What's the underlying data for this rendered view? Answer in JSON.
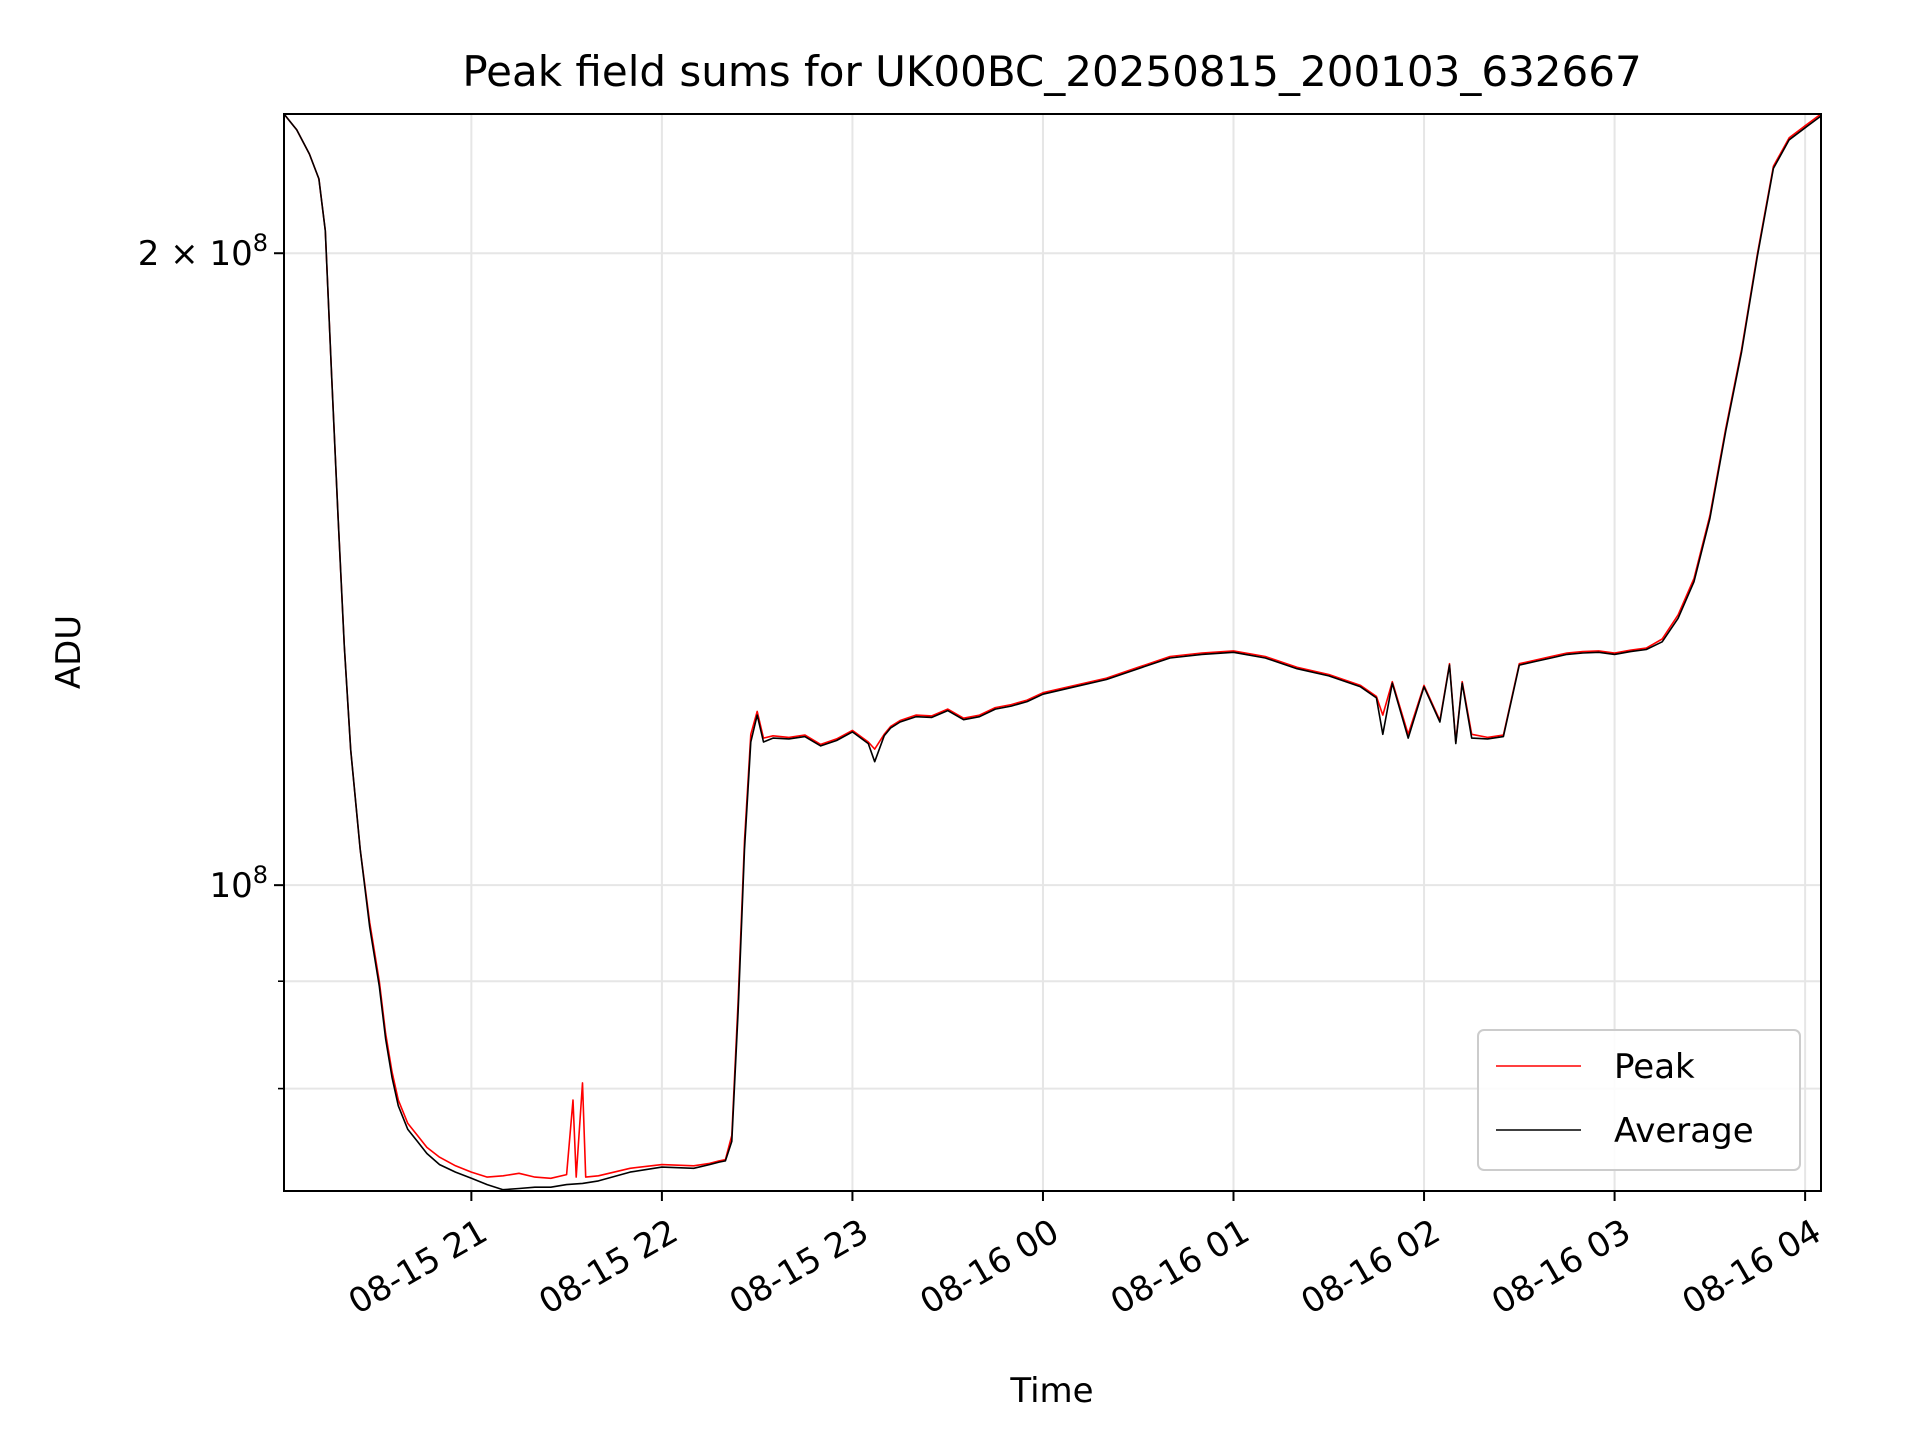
{
  "chart_data": {
    "type": "line",
    "title": "Peak field sums for UK00BC_20250815_200103_632667",
    "xlabel": "Time",
    "ylabel": "ADU",
    "x_axis_type": "time",
    "xlim": [
      "2025-08-15 20:01",
      "2025-08-16 04:05"
    ],
    "x_ticks": [
      "2025-08-15 21:00",
      "2025-08-15 22:00",
      "2025-08-15 23:00",
      "2025-08-16 00:00",
      "2025-08-16 01:00",
      "2025-08-16 02:00",
      "2025-08-16 03:00",
      "2025-08-16 04:00"
    ],
    "x_tick_labels": [
      "08-15 21",
      "08-15 22",
      "08-15 23",
      "08-16 00",
      "08-16 01",
      "08-16 02",
      "08-16 03",
      "08-16 04"
    ],
    "y_scale": "log",
    "ylim": [
      71500000,
      233000000
    ],
    "y_ticks": [
      {
        "value": 200000000,
        "base": "2 × 10",
        "exp": "8"
      },
      {
        "value": 100000000,
        "base": "10",
        "exp": "8"
      }
    ],
    "y_minor_ticks": [
      90000000,
      80000000
    ],
    "grid": true,
    "legend_position": "lower right",
    "series": [
      {
        "name": "Peak",
        "color": "#ff0000",
        "x": [
          "2025-08-15 20:01",
          "2025-08-15 20:05",
          "2025-08-15 20:09",
          "2025-08-15 20:12",
          "2025-08-15 20:14",
          "2025-08-15 20:16",
          "2025-08-15 20:18",
          "2025-08-15 20:20",
          "2025-08-15 20:22",
          "2025-08-15 20:25",
          "2025-08-15 20:28",
          "2025-08-15 20:31",
          "2025-08-15 20:33",
          "2025-08-15 20:35",
          "2025-08-15 20:37",
          "2025-08-15 20:40",
          "2025-08-15 20:43",
          "2025-08-15 20:46",
          "2025-08-15 20:50",
          "2025-08-15 20:55",
          "2025-08-15 21:00",
          "2025-08-15 21:05",
          "2025-08-15 21:10",
          "2025-08-15 21:15",
          "2025-08-15 21:20",
          "2025-08-15 21:25",
          "2025-08-15 21:30",
          "2025-08-15 21:32",
          "2025-08-15 21:33",
          "2025-08-15 21:35",
          "2025-08-15 21:36",
          "2025-08-15 21:40",
          "2025-08-15 21:50",
          "2025-08-15 22:00",
          "2025-08-15 22:10",
          "2025-08-15 22:15",
          "2025-08-15 22:18",
          "2025-08-15 22:20",
          "2025-08-15 22:22",
          "2025-08-15 22:24",
          "2025-08-15 22:26",
          "2025-08-15 22:28",
          "2025-08-15 22:30",
          "2025-08-15 22:32",
          "2025-08-15 22:35",
          "2025-08-15 22:40",
          "2025-08-15 22:45",
          "2025-08-15 22:50",
          "2025-08-15 22:55",
          "2025-08-15 23:00",
          "2025-08-15 23:05",
          "2025-08-15 23:07",
          "2025-08-15 23:10",
          "2025-08-15 23:12",
          "2025-08-15 23:15",
          "2025-08-15 23:20",
          "2025-08-15 23:25",
          "2025-08-15 23:30",
          "2025-08-15 23:35",
          "2025-08-15 23:40",
          "2025-08-15 23:45",
          "2025-08-15 23:50",
          "2025-08-15 23:55",
          "2025-08-16 00:00",
          "2025-08-16 00:10",
          "2025-08-16 00:20",
          "2025-08-16 00:30",
          "2025-08-16 00:40",
          "2025-08-16 00:50",
          "2025-08-16 01:00",
          "2025-08-16 01:10",
          "2025-08-16 01:20",
          "2025-08-16 01:30",
          "2025-08-16 01:40",
          "2025-08-16 01:45",
          "2025-08-16 01:47",
          "2025-08-16 01:50",
          "2025-08-16 01:55",
          "2025-08-16 02:00",
          "2025-08-16 02:05",
          "2025-08-16 02:08",
          "2025-08-16 02:10",
          "2025-08-16 02:12",
          "2025-08-16 02:15",
          "2025-08-16 02:20",
          "2025-08-16 02:25",
          "2025-08-16 02:30",
          "2025-08-16 02:35",
          "2025-08-16 02:40",
          "2025-08-16 02:45",
          "2025-08-16 02:50",
          "2025-08-16 02:55",
          "2025-08-16 03:00",
          "2025-08-16 03:05",
          "2025-08-16 03:10",
          "2025-08-16 03:15",
          "2025-08-16 03:20",
          "2025-08-16 03:25",
          "2025-08-16 03:30",
          "2025-08-16 03:35",
          "2025-08-16 03:40",
          "2025-08-16 03:45",
          "2025-08-16 03:50",
          "2025-08-16 03:55",
          "2025-08-16 04:00",
          "2025-08-16 04:05"
        ],
        "y": [
          233000000,
          229000000,
          223000000,
          217000000,
          205000000,
          175000000,
          150000000,
          130000000,
          116000000,
          104000000,
          96000000,
          90000000,
          85000000,
          81500000,
          79000000,
          77000000,
          76000000,
          75000000,
          74200000,
          73500000,
          73000000,
          72600000,
          72700000,
          72900000,
          72600000,
          72500000,
          72800000,
          79000000,
          72600000,
          80500000,
          72600000,
          72700000,
          73300000,
          73600000,
          73500000,
          73700000,
          73900000,
          74000000,
          76000000,
          88000000,
          105000000,
          118000000,
          121000000,
          117500000,
          117800000,
          117600000,
          117900000,
          116700000,
          117400000,
          118500000,
          117000000,
          116100000,
          118000000,
          119000000,
          119800000,
          120500000,
          120400000,
          121300000,
          120100000,
          120500000,
          121500000,
          121900000,
          122500000,
          123500000,
          124500000,
          125500000,
          127000000,
          128500000,
          129000000,
          129300000,
          128500000,
          127000000,
          126000000,
          124500000,
          123000000,
          120500000,
          125000000,
          118000000,
          124500000,
          119800000,
          127500000,
          117000000,
          125000000,
          118000000,
          117600000,
          117900000,
          127500000,
          128000000,
          128500000,
          129000000,
          129200000,
          129300000,
          129000000,
          129400000,
          129700000,
          131000000,
          134500000,
          140000000,
          150000000,
          165000000,
          180000000,
          200000000,
          220000000,
          227000000,
          230000000,
          233000000
        ]
      },
      {
        "name": "Average",
        "color": "#000000",
        "x": [
          "2025-08-15 20:01",
          "2025-08-15 20:05",
          "2025-08-15 20:09",
          "2025-08-15 20:12",
          "2025-08-15 20:14",
          "2025-08-15 20:16",
          "2025-08-15 20:18",
          "2025-08-15 20:20",
          "2025-08-15 20:22",
          "2025-08-15 20:25",
          "2025-08-15 20:28",
          "2025-08-15 20:31",
          "2025-08-15 20:33",
          "2025-08-15 20:35",
          "2025-08-15 20:37",
          "2025-08-15 20:40",
          "2025-08-15 20:43",
          "2025-08-15 20:46",
          "2025-08-15 20:50",
          "2025-08-15 20:55",
          "2025-08-15 21:00",
          "2025-08-15 21:05",
          "2025-08-15 21:10",
          "2025-08-15 21:15",
          "2025-08-15 21:20",
          "2025-08-15 21:25",
          "2025-08-15 21:30",
          "2025-08-15 21:35",
          "2025-08-15 21:40",
          "2025-08-15 21:50",
          "2025-08-15 22:00",
          "2025-08-15 22:10",
          "2025-08-15 22:15",
          "2025-08-15 22:18",
          "2025-08-15 22:20",
          "2025-08-15 22:22",
          "2025-08-15 22:24",
          "2025-08-15 22:26",
          "2025-08-15 22:28",
          "2025-08-15 22:30",
          "2025-08-15 22:32",
          "2025-08-15 22:35",
          "2025-08-15 22:40",
          "2025-08-15 22:45",
          "2025-08-15 22:50",
          "2025-08-15 22:55",
          "2025-08-15 23:00",
          "2025-08-15 23:05",
          "2025-08-15 23:07",
          "2025-08-15 23:10",
          "2025-08-15 23:12",
          "2025-08-15 23:15",
          "2025-08-15 23:20",
          "2025-08-15 23:25",
          "2025-08-15 23:30",
          "2025-08-15 23:35",
          "2025-08-15 23:40",
          "2025-08-15 23:45",
          "2025-08-15 23:50",
          "2025-08-15 23:55",
          "2025-08-16 00:00",
          "2025-08-16 00:10",
          "2025-08-16 00:20",
          "2025-08-16 00:30",
          "2025-08-16 00:40",
          "2025-08-16 00:50",
          "2025-08-16 01:00",
          "2025-08-16 01:10",
          "2025-08-16 01:20",
          "2025-08-16 01:30",
          "2025-08-16 01:40",
          "2025-08-16 01:45",
          "2025-08-16 01:47",
          "2025-08-16 01:50",
          "2025-08-16 01:55",
          "2025-08-16 02:00",
          "2025-08-16 02:05",
          "2025-08-16 02:08",
          "2025-08-16 02:10",
          "2025-08-16 02:12",
          "2025-08-16 02:15",
          "2025-08-16 02:20",
          "2025-08-16 02:25",
          "2025-08-16 02:30",
          "2025-08-16 02:35",
          "2025-08-16 02:40",
          "2025-08-16 02:45",
          "2025-08-16 02:50",
          "2025-08-16 02:55",
          "2025-08-16 03:00",
          "2025-08-16 03:05",
          "2025-08-16 03:10",
          "2025-08-16 03:15",
          "2025-08-16 03:20",
          "2025-08-16 03:25",
          "2025-08-16 03:30",
          "2025-08-16 03:35",
          "2025-08-16 03:40",
          "2025-08-16 03:45",
          "2025-08-16 03:50",
          "2025-08-16 03:55",
          "2025-08-16 04:00",
          "2025-08-16 04:05"
        ],
        "y": [
          233000000,
          229000000,
          223000000,
          217000000,
          205000000,
          175000000,
          150000000,
          130000000,
          116000000,
          104000000,
          95500000,
          89500000,
          84500000,
          81000000,
          78500000,
          76500000,
          75500000,
          74500000,
          73600000,
          73000000,
          72500000,
          72000000,
          71600000,
          71700000,
          71800000,
          71800000,
          72000000,
          72100000,
          72300000,
          73000000,
          73400000,
          73300000,
          73600000,
          73800000,
          73900000,
          75500000,
          87000000,
          104000000,
          117000000,
          120500000,
          117000000,
          117500000,
          117400000,
          117700000,
          116500000,
          117200000,
          118300000,
          116800000,
          114500000,
          117800000,
          118800000,
          119600000,
          120300000,
          120200000,
          121100000,
          119900000,
          120300000,
          121300000,
          121700000,
          122300000,
          123300000,
          124300000,
          125300000,
          126800000,
          128300000,
          128800000,
          129100000,
          128300000,
          126800000,
          125800000,
          124300000,
          122800000,
          118000000,
          124800000,
          117500000,
          124300000,
          119600000,
          127300000,
          116800000,
          124800000,
          117500000,
          117400000,
          117700000,
          127300000,
          127800000,
          128300000,
          128800000,
          129000000,
          129100000,
          128800000,
          129200000,
          129500000,
          130600000,
          134000000,
          139500000,
          149500000,
          164500000,
          179500000,
          199500000,
          219500000,
          226500000,
          229500000,
          232500000
        ]
      }
    ]
  }
}
